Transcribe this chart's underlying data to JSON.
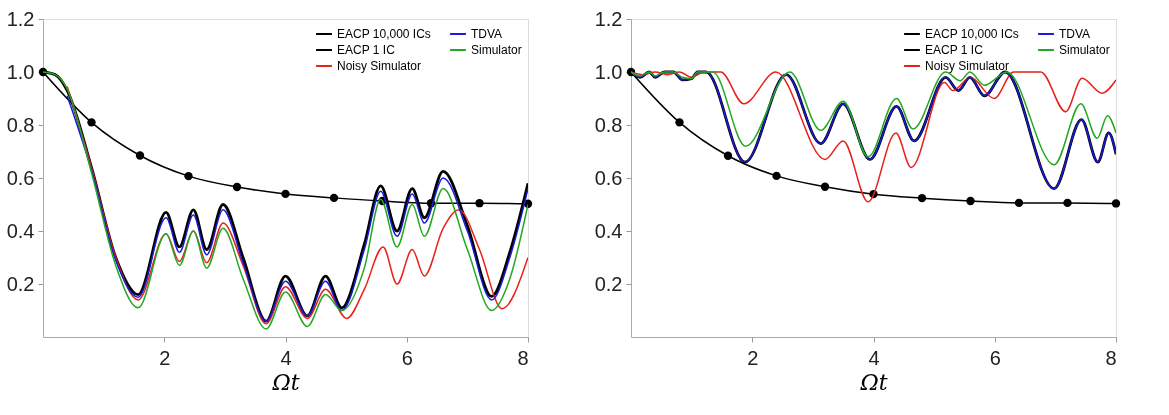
{
  "chart_data": [
    {
      "type": "line",
      "xlabel": "Ωt",
      "xlim": [
        0,
        8
      ],
      "ylim": [
        0,
        1.2
      ],
      "xticks": [
        2,
        4,
        6,
        8
      ],
      "yticks": [
        0.2,
        0.4,
        0.6,
        0.8,
        {
          "value": 1.0,
          "label": "1.0"
        },
        1.2
      ],
      "grid": false,
      "legend": "top right",
      "line_style": "solid",
      "series": [
        {
          "name": "EACP 10,000 ICs",
          "color": "#000000",
          "marker": "circle",
          "x": [
            0,
            0.8,
            1.6,
            2.4,
            3.2,
            4,
            4.8,
            5.6,
            6.4,
            7.2,
            8
          ],
          "values": [
            1.0,
            0.81,
            0.685,
            0.607,
            0.566,
            0.54,
            0.525,
            0.513,
            0.505,
            0.505,
            0.503
          ]
        },
        {
          "name": "EACP 1 IC",
          "color": "#000000",
          "marker": "none",
          "x": [
            0,
            0.2,
            0.4,
            0.8,
            1.2,
            1.57,
            2.03,
            2.25,
            2.48,
            2.7,
            2.97,
            3.3,
            3.68,
            4.0,
            4.36,
            4.66,
            4.93,
            5.3,
            5.57,
            5.84,
            6.09,
            6.29,
            6.6,
            7.0,
            7.4,
            7.7,
            8
          ],
          "values": [
            1.0,
            0.99,
            0.93,
            0.64,
            0.3,
            0.16,
            0.47,
            0.34,
            0.48,
            0.33,
            0.5,
            0.3,
            0.06,
            0.23,
            0.08,
            0.23,
            0.11,
            0.35,
            0.57,
            0.4,
            0.56,
            0.45,
            0.625,
            0.42,
            0.153,
            0.32,
            0.58
          ]
        },
        {
          "name": "Noisy Simulator",
          "color": "#e8201a",
          "marker": "none",
          "x": [
            0.4,
            0.8,
            1.2,
            1.57,
            2.03,
            2.25,
            2.48,
            2.7,
            2.97,
            3.3,
            3.68,
            4.0,
            4.36,
            4.66,
            5.01,
            5.3,
            5.61,
            5.84,
            6.09,
            6.29,
            6.6,
            6.86,
            7.2,
            7.57,
            8
          ],
          "values": [
            0.945,
            0.64,
            0.3,
            0.14,
            0.39,
            0.285,
            0.4,
            0.28,
            0.43,
            0.27,
            0.05,
            0.19,
            0.07,
            0.18,
            0.07,
            0.18,
            0.34,
            0.2,
            0.33,
            0.23,
            0.41,
            0.48,
            0.33,
            0.107,
            0.3
          ]
        },
        {
          "name": "TDVA",
          "color": "#1a1adb",
          "marker": "none",
          "x": [
            0.4,
            0.8,
            1.2,
            1.57,
            2.03,
            2.25,
            2.48,
            2.7,
            2.97,
            3.3,
            3.68,
            4.0,
            4.36,
            4.66,
            4.93,
            5.3,
            5.57,
            5.84,
            6.09,
            6.29,
            6.6,
            7.0,
            7.4,
            7.7,
            8
          ],
          "values": [
            0.91,
            0.63,
            0.29,
            0.15,
            0.45,
            0.32,
            0.46,
            0.31,
            0.48,
            0.28,
            0.06,
            0.21,
            0.08,
            0.21,
            0.1,
            0.33,
            0.55,
            0.38,
            0.54,
            0.43,
            0.6,
            0.4,
            0.14,
            0.3,
            0.56
          ]
        },
        {
          "name": "Simulator",
          "color": "#22a822",
          "marker": "none",
          "x": [
            0,
            0.2,
            0.4,
            0.8,
            1.2,
            1.57,
            2.03,
            2.25,
            2.48,
            2.7,
            2.97,
            3.3,
            3.68,
            4.0,
            4.36,
            4.66,
            4.93,
            5.3,
            5.57,
            5.84,
            6.09,
            6.29,
            6.6,
            7.0,
            7.4,
            7.7,
            8
          ],
          "values": [
            1.0,
            0.99,
            0.935,
            0.62,
            0.27,
            0.11,
            0.39,
            0.27,
            0.4,
            0.26,
            0.41,
            0.22,
            0.03,
            0.17,
            0.04,
            0.16,
            0.1,
            0.26,
            0.52,
            0.34,
            0.5,
            0.38,
            0.56,
            0.33,
            0.1,
            0.22,
            0.5
          ]
        }
      ]
    },
    {
      "type": "line",
      "xlabel": "Ωt",
      "xlim": [
        0,
        8
      ],
      "ylim": [
        0,
        1.2
      ],
      "xticks": [
        2,
        4,
        6,
        8
      ],
      "yticks": [
        0.2,
        0.4,
        0.6,
        0.8,
        {
          "value": 1.0,
          "label": "1.0"
        },
        1.2
      ],
      "grid": false,
      "legend": "top right",
      "line_style": "solid",
      "series": [
        {
          "name": "EACP 10,000 ICs",
          "color": "#000000",
          "marker": "circle",
          "x": [
            0,
            0.8,
            1.6,
            2.4,
            3.2,
            4,
            4.8,
            5.6,
            6.4,
            7.2,
            8
          ],
          "values": [
            1.0,
            0.81,
            0.684,
            0.608,
            0.567,
            0.539,
            0.524,
            0.513,
            0.506,
            0.506,
            0.504
          ]
        },
        {
          "name": "EACP 1 IC",
          "color": "#000000",
          "marker": "none",
          "x": [
            0,
            0.15,
            0.3,
            0.4,
            0.55,
            0.7,
            0.85,
            1.0,
            1.1,
            1.24,
            1.88,
            2.56,
            3.13,
            3.5,
            3.94,
            4.38,
            4.67,
            5.19,
            5.4,
            5.59,
            5.83,
            6.17,
            6.98,
            7.43,
            7.7,
            7.88,
            8
          ],
          "values": [
            1.0,
            0.98,
            1.0,
            0.98,
            1.0,
            1.0,
            0.97,
            0.975,
            1.0,
            1.0,
            0.66,
            0.99,
            0.73,
            0.88,
            0.67,
            0.87,
            0.74,
            0.98,
            0.93,
            0.98,
            0.91,
            1.0,
            0.56,
            0.82,
            0.66,
            0.77,
            0.69
          ]
        },
        {
          "name": "Noisy Simulator",
          "color": "#e8201a",
          "marker": "none",
          "x": [
            0,
            0.2,
            0.4,
            0.6,
            0.8,
            1.0,
            1.2,
            1.48,
            1.86,
            2.39,
            3.2,
            3.5,
            3.91,
            4.37,
            4.62,
            5.17,
            5.31,
            5.6,
            5.99,
            6.31,
            6.76,
            7.17,
            7.44,
            7.77,
            8
          ],
          "values": [
            1.0,
            0.99,
            1.0,
            0.99,
            1.0,
            0.98,
            1.0,
            1.0,
            0.88,
            1.0,
            0.67,
            0.74,
            0.51,
            0.77,
            0.64,
            0.96,
            0.93,
            0.98,
            0.9,
            1.0,
            1.0,
            0.85,
            0.976,
            0.92,
            0.97
          ]
        },
        {
          "name": "TDVA",
          "color": "#1a1adb",
          "marker": "none",
          "x": [
            0,
            0.15,
            0.3,
            0.4,
            0.55,
            0.7,
            0.85,
            1.0,
            1.1,
            1.24,
            1.88,
            2.56,
            3.13,
            3.5,
            3.94,
            4.38,
            4.67,
            5.19,
            5.4,
            5.59,
            5.83,
            6.17,
            6.98,
            7.43,
            7.7,
            7.88,
            8
          ],
          "values": [
            1.0,
            0.98,
            1.0,
            0.98,
            1.0,
            1.0,
            0.97,
            0.975,
            1.0,
            1.0,
            0.66,
            0.99,
            0.73,
            0.88,
            0.67,
            0.87,
            0.74,
            0.98,
            0.93,
            0.98,
            0.91,
            1.0,
            0.56,
            0.82,
            0.66,
            0.77,
            0.69
          ]
        },
        {
          "name": "Simulator",
          "color": "#22a822",
          "marker": "none",
          "x": [
            0,
            0.15,
            0.3,
            0.4,
            0.55,
            0.7,
            0.85,
            1.0,
            1.1,
            1.35,
            1.89,
            2.62,
            3.13,
            3.5,
            3.91,
            4.38,
            4.65,
            5.19,
            5.43,
            5.59,
            5.83,
            6.2,
            6.98,
            7.42,
            7.69,
            7.86,
            8
          ],
          "values": [
            1.0,
            0.985,
            1.0,
            0.985,
            1.0,
            1.0,
            0.98,
            0.975,
            1.0,
            1.0,
            0.72,
            1.0,
            0.78,
            0.89,
            0.68,
            0.9,
            0.785,
            1.0,
            0.967,
            1.0,
            0.95,
            1.0,
            0.65,
            0.88,
            0.75,
            0.835,
            0.77
          ]
        }
      ]
    }
  ]
}
